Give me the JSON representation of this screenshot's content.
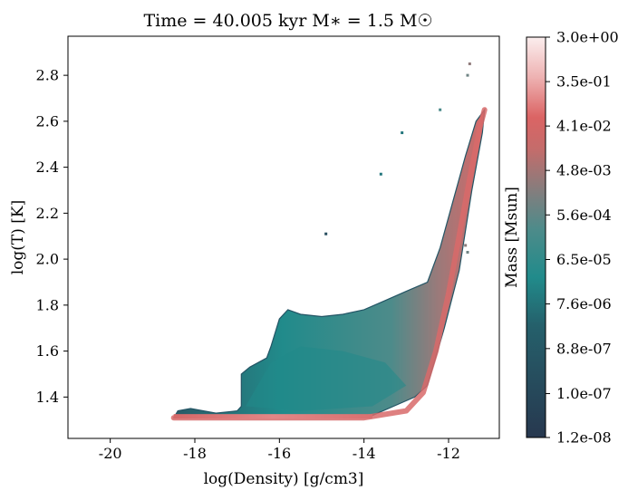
{
  "chart_data": {
    "type": "heatmap",
    "title": "Time = 40.005 kyr    M$_*$ = 1.5 M$_\\odot$",
    "title_display": "Time = 40.005 kyr    M∗ = 1.5 M☉",
    "xlabel": "log(Density) [g/cm3]",
    "ylabel": "log(T) [K]",
    "xlim": [
      -21.0,
      -10.8
    ],
    "ylim": [
      1.22,
      2.97
    ],
    "xticks": [
      -20,
      -18,
      -16,
      -14,
      -12
    ],
    "xtick_labels": [
      "-20",
      "-18",
      "-16",
      "-14",
      "-12"
    ],
    "yticks": [
      1.4,
      1.6,
      1.8,
      2.0,
      2.2,
      2.4,
      2.6,
      2.8
    ],
    "ytick_labels": [
      "1.4",
      "1.6",
      "1.8",
      "2.0",
      "2.2",
      "2.4",
      "2.6",
      "2.8"
    ],
    "grid": false,
    "colorbar": {
      "label": "Mass [Msun]",
      "scale": "log",
      "ticks": [
        1.2e-08,
        1e-07,
        8.8e-07,
        7.6e-06,
        6.5e-05,
        0.00056,
        0.0048,
        0.041,
        0.35,
        3.0
      ],
      "tick_labels": [
        "1.2e-08",
        "1.0e-07",
        "8.8e-07",
        "7.6e-06",
        "6.5e-05",
        "5.6e-04",
        "4.8e-03",
        "4.1e-02",
        "3.5e-01",
        "3.0e+00"
      ],
      "colormap_stops": [
        "#27384f",
        "#218b8b",
        "#6f8484",
        "#db6464",
        "#fbeeee"
      ]
    },
    "distribution": {
      "floor_log_temperature": 1.31,
      "outline": [
        [
          -18.5,
          1.31
        ],
        [
          -18.4,
          1.34
        ],
        [
          -18.1,
          1.35
        ],
        [
          -17.5,
          1.33
        ],
        [
          -17.0,
          1.34
        ],
        [
          -16.9,
          1.36
        ],
        [
          -16.9,
          1.5
        ],
        [
          -16.7,
          1.53
        ],
        [
          -16.3,
          1.57
        ],
        [
          -16.2,
          1.62
        ],
        [
          -16.0,
          1.74
        ],
        [
          -15.8,
          1.78
        ],
        [
          -15.5,
          1.76
        ],
        [
          -15.0,
          1.75
        ],
        [
          -14.5,
          1.76
        ],
        [
          -14.0,
          1.78
        ],
        [
          -13.5,
          1.82
        ],
        [
          -13.0,
          1.86
        ],
        [
          -12.5,
          1.9
        ],
        [
          -12.2,
          2.05
        ],
        [
          -11.9,
          2.25
        ],
        [
          -11.6,
          2.45
        ],
        [
          -11.35,
          2.6
        ],
        [
          -11.15,
          2.65
        ],
        [
          -11.2,
          2.55
        ],
        [
          -11.45,
          2.3
        ],
        [
          -11.75,
          1.95
        ],
        [
          -12.1,
          1.7
        ],
        [
          -12.5,
          1.45
        ],
        [
          -12.8,
          1.4
        ],
        [
          -13.3,
          1.36
        ],
        [
          -13.8,
          1.32
        ],
        [
          -14.5,
          1.31
        ],
        [
          -18.5,
          1.31
        ]
      ],
      "ridge": [
        [
          -18.5,
          1.31
        ],
        [
          -14.0,
          1.31
        ],
        [
          -13.0,
          1.34
        ],
        [
          -12.6,
          1.42
        ],
        [
          -12.3,
          1.6
        ],
        [
          -12.0,
          1.85
        ],
        [
          -11.75,
          2.1
        ],
        [
          -11.5,
          2.35
        ],
        [
          -11.25,
          2.58
        ],
        [
          -11.15,
          2.65
        ]
      ],
      "core": [
        [
          -16.8,
          1.36
        ],
        [
          -16.2,
          1.55
        ],
        [
          -15.5,
          1.62
        ],
        [
          -14.5,
          1.6
        ],
        [
          -13.5,
          1.55
        ],
        [
          -13.0,
          1.45
        ],
        [
          -13.8,
          1.36
        ],
        [
          -15.5,
          1.34
        ]
      ],
      "islands": [
        {
          "x": -11.5,
          "y": 2.85,
          "level": 0.66
        },
        {
          "x": -11.55,
          "y": 2.8,
          "level": 0.6
        },
        {
          "x": -12.2,
          "y": 2.65,
          "level": 0.5
        },
        {
          "x": -13.1,
          "y": 2.55,
          "level": 0.3
        },
        {
          "x": -13.6,
          "y": 2.37,
          "level": 0.3
        },
        {
          "x": -14.9,
          "y": 2.11,
          "level": 0.1
        },
        {
          "x": -11.6,
          "y": 2.06,
          "level": 0.65
        },
        {
          "x": -11.55,
          "y": 2.03,
          "level": 0.6
        }
      ]
    }
  }
}
